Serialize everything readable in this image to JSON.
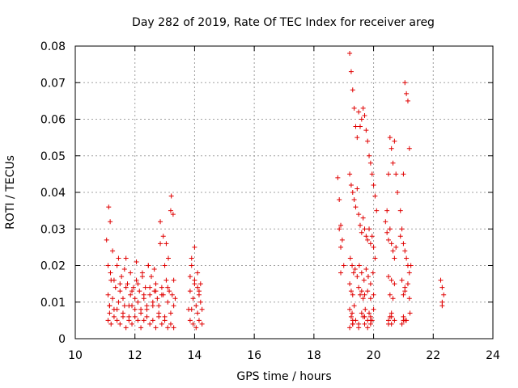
{
  "chart_data": {
    "type": "scatter",
    "title": "Day 282 of 2019, Rate Of TEC Index for receiver areg",
    "xlabel": "GPS time / hours",
    "ylabel": "ROTI / TECUs",
    "xlim": [
      10,
      24
    ],
    "ylim": [
      0,
      0.08
    ],
    "grid": true,
    "marker": "+",
    "color": "#e00000",
    "xticks": [
      10,
      12,
      14,
      16,
      18,
      20,
      22,
      24
    ],
    "xtick_labels": [
      "10",
      "12",
      "14",
      "16",
      "18",
      "20",
      "22",
      "24"
    ],
    "yticks": [
      0,
      0.01,
      0.02,
      0.03,
      0.04,
      0.05,
      0.06,
      0.07,
      0.08
    ],
    "ytick_labels": [
      "0",
      "0.01",
      "0.02",
      "0.03",
      "0.04",
      "0.05",
      "0.06",
      "0.07",
      "0.08"
    ],
    "series": [
      {
        "name": "ROTI",
        "x": [
          11.05,
          11.1,
          11.15,
          11.2,
          11.25,
          11.3,
          11.35,
          11.4,
          11.45,
          11.5,
          11.55,
          11.6,
          11.65,
          11.7,
          11.75,
          11.8,
          11.85,
          11.9,
          11.95,
          12.0,
          12.05,
          12.1,
          12.15,
          12.2,
          12.25,
          12.3,
          12.35,
          12.4,
          12.45,
          12.5,
          12.55,
          12.6,
          12.65,
          12.7,
          12.75,
          12.8,
          12.85,
          12.9,
          12.95,
          13.0,
          13.05,
          13.1,
          13.15,
          13.2,
          13.25,
          13.3,
          13.35,
          13.8,
          13.85,
          13.9,
          13.95,
          14.0,
          14.05,
          14.1,
          14.15,
          14.2,
          14.25,
          11.1,
          11.15,
          11.2,
          11.3,
          11.4,
          11.5,
          11.6,
          11.7,
          11.8,
          11.9,
          12.0,
          12.1,
          12.2,
          12.3,
          12.4,
          12.5,
          12.6,
          12.7,
          12.8,
          12.9,
          13.0,
          13.1,
          13.2,
          13.3,
          13.85,
          13.95,
          14.05,
          14.15,
          14.25,
          11.12,
          11.17,
          11.25,
          11.45,
          11.65,
          11.85,
          12.05,
          12.25,
          12.45,
          12.65,
          12.85,
          12.95,
          13.05,
          13.12,
          13.22,
          13.28,
          13.9,
          14.0,
          14.1,
          14.2,
          11.1,
          11.18,
          11.3,
          11.5,
          11.7,
          11.9,
          12.1,
          12.3,
          12.5,
          12.7,
          12.9,
          13.1,
          13.3,
          13.85,
          14.0,
          14.15,
          11.15,
          11.4,
          11.6,
          11.8,
          12.0,
          12.2,
          12.4,
          12.6,
          12.8,
          13.0,
          13.2,
          13.9,
          14.1,
          18.8,
          18.85,
          18.9,
          18.95,
          19.0,
          19.2,
          19.25,
          19.3,
          19.35,
          19.4,
          19.45,
          19.5,
          19.55,
          19.6,
          19.65,
          19.7,
          19.75,
          19.8,
          19.85,
          19.9,
          19.95,
          20.0,
          20.05,
          20.1,
          20.4,
          20.45,
          20.5,
          20.55,
          20.6,
          20.65,
          20.7,
          20.75,
          20.8,
          20.9,
          20.95,
          21.0,
          21.05,
          21.1,
          21.15,
          21.2,
          21.25,
          22.25,
          22.3,
          22.35,
          18.85,
          18.9,
          19.2,
          19.25,
          19.3,
          19.35,
          19.4,
          19.45,
          19.5,
          19.55,
          19.6,
          19.65,
          19.7,
          19.75,
          19.8,
          19.85,
          19.9,
          19.95,
          20.0,
          20.05,
          20.45,
          20.5,
          20.55,
          20.6,
          20.65,
          20.7,
          20.75,
          20.9,
          21.0,
          21.05,
          21.1,
          21.15,
          21.2,
          22.3,
          18.9,
          19.22,
          19.28,
          19.33,
          19.38,
          19.45,
          19.52,
          19.6,
          19.68,
          19.75,
          19.82,
          19.9,
          19.98,
          20.5,
          20.6,
          20.7,
          20.95,
          21.05,
          21.15,
          19.2,
          19.25,
          19.3,
          19.5,
          19.55,
          19.6,
          19.65,
          19.7,
          19.8,
          19.9,
          20.0,
          20.55,
          20.65,
          21.0,
          21.05,
          21.2,
          22.3,
          19.2,
          19.25,
          19.28,
          19.3,
          19.35,
          19.6,
          19.65,
          19.72,
          19.8,
          19.85,
          19.9,
          19.95,
          20.0,
          20.55,
          20.6,
          21.0,
          21.05,
          21.22,
          19.3,
          19.4,
          19.5,
          19.7,
          19.8,
          19.9,
          20.5,
          20.6,
          20.7,
          20.95,
          21.1,
          19.2,
          19.3,
          19.5,
          19.7,
          19.9,
          20.5,
          20.6,
          21.0
        ],
        "y": [
          0.027,
          0.012,
          0.009,
          0.016,
          0.011,
          0.008,
          0.014,
          0.02,
          0.01,
          0.013,
          0.017,
          0.011,
          0.009,
          0.022,
          0.015,
          0.006,
          0.012,
          0.009,
          0.014,
          0.011,
          0.016,
          0.01,
          0.013,
          0.008,
          0.018,
          0.011,
          0.014,
          0.009,
          0.02,
          0.012,
          0.017,
          0.01,
          0.013,
          0.015,
          0.011,
          0.009,
          0.026,
          0.014,
          0.012,
          0.02,
          0.016,
          0.01,
          0.013,
          0.035,
          0.012,
          0.009,
          0.011,
          0.008,
          0.013,
          0.02,
          0.011,
          0.016,
          0.009,
          0.014,
          0.012,
          0.01,
          0.008,
          0.005,
          0.007,
          0.004,
          0.006,
          0.005,
          0.004,
          0.006,
          0.003,
          0.005,
          0.004,
          0.006,
          0.005,
          0.003,
          0.005,
          0.006,
          0.004,
          0.005,
          0.003,
          0.006,
          0.004,
          0.005,
          0.003,
          0.004,
          0.003,
          0.005,
          0.004,
          0.003,
          0.005,
          0.004,
          0.036,
          0.032,
          0.024,
          0.022,
          0.019,
          0.018,
          0.021,
          0.017,
          0.02,
          0.019,
          0.032,
          0.028,
          0.026,
          0.022,
          0.039,
          0.034,
          0.022,
          0.025,
          0.018,
          0.015,
          0.02,
          0.018,
          0.016,
          0.015,
          0.014,
          0.013,
          0.015,
          0.012,
          0.014,
          0.013,
          0.012,
          0.014,
          0.016,
          0.017,
          0.015,
          0.013,
          0.009,
          0.008,
          0.007,
          0.009,
          0.008,
          0.007,
          0.008,
          0.009,
          0.007,
          0.006,
          0.007,
          0.008,
          0.007,
          0.044,
          0.038,
          0.031,
          0.027,
          0.02,
          0.078,
          0.073,
          0.068,
          0.063,
          0.058,
          0.055,
          0.062,
          0.058,
          0.06,
          0.063,
          0.061,
          0.057,
          0.054,
          0.05,
          0.048,
          0.045,
          0.042,
          0.039,
          0.035,
          0.032,
          0.035,
          0.045,
          0.055,
          0.052,
          0.048,
          0.054,
          0.045,
          0.04,
          0.035,
          0.03,
          0.045,
          0.07,
          0.067,
          0.065,
          0.052,
          0.02,
          0.016,
          0.014,
          0.012,
          0.03,
          0.025,
          0.045,
          0.042,
          0.04,
          0.038,
          0.036,
          0.041,
          0.034,
          0.031,
          0.029,
          0.033,
          0.03,
          0.028,
          0.027,
          0.03,
          0.026,
          0.028,
          0.025,
          0.022,
          0.029,
          0.027,
          0.03,
          0.026,
          0.024,
          0.022,
          0.025,
          0.028,
          0.026,
          0.024,
          0.022,
          0.02,
          0.018,
          0.01,
          0.018,
          0.022,
          0.02,
          0.018,
          0.019,
          0.017,
          0.02,
          0.018,
          0.016,
          0.019,
          0.017,
          0.015,
          0.018,
          0.017,
          0.016,
          0.015,
          0.016,
          0.014,
          0.015,
          0.015,
          0.013,
          0.012,
          0.014,
          0.012,
          0.013,
          0.011,
          0.012,
          0.013,
          0.011,
          0.012,
          0.012,
          0.011,
          0.012,
          0.013,
          0.011,
          0.009,
          0.008,
          0.006,
          0.007,
          0.005,
          0.009,
          0.007,
          0.006,
          0.008,
          0.005,
          0.007,
          0.006,
          0.005,
          0.008,
          0.006,
          0.007,
          0.006,
          0.005,
          0.007,
          0.004,
          0.005,
          0.004,
          0.006,
          0.003,
          0.005,
          0.004,
          0.006,
          0.005,
          0.004,
          0.005,
          0.003,
          0.004,
          0.003,
          0.004,
          0.004,
          0.005,
          0.004,
          0.005
        ]
      }
    ]
  }
}
